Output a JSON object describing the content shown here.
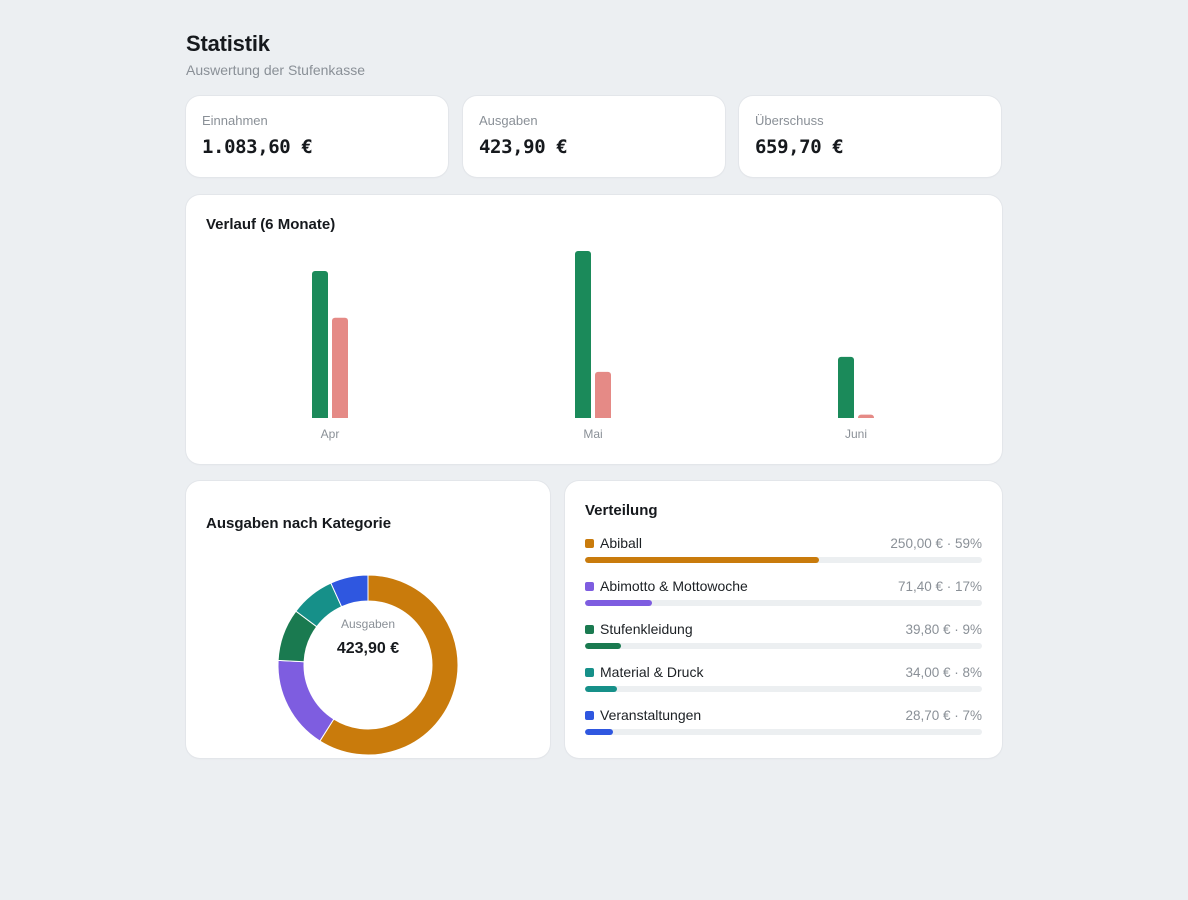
{
  "header": {
    "title": "Statistik",
    "subtitle": "Auswertung der Stufenkasse"
  },
  "kpis": [
    {
      "label": "Einnahmen",
      "value": "1.083,60 €"
    },
    {
      "label": "Ausgaben",
      "value": "423,90 €"
    },
    {
      "label": "Überschuss",
      "value": "659,70 €"
    }
  ],
  "trend": {
    "title": "Verlauf (6 Monate)",
    "chart_data": {
      "type": "bar",
      "categories": [
        "Apr",
        "Mai",
        "Juni"
      ],
      "series": [
        {
          "values": [
            440,
            500,
            183
          ],
          "color": "#1b8a5a"
        },
        {
          "values": [
            300,
            138,
            10
          ],
          "color": "#e58a86"
        }
      ],
      "ylim": [
        0,
        500
      ],
      "grid": false,
      "legend": "none"
    }
  },
  "category": {
    "title": "Ausgaben nach Kategorie",
    "center_label": "Ausgaben",
    "center_value": "423,90 €",
    "chart_data": {
      "type": "pie",
      "style": "donut",
      "labels": [
        "Abiball",
        "Abimotto & Mottowoche",
        "Stufenkleidung",
        "Material & Druck",
        "Veranstaltungen"
      ],
      "values": [
        250.0,
        71.4,
        39.8,
        34.0,
        28.7
      ],
      "colors": [
        "#c97b0c",
        "#7e5de0",
        "#1a7a50",
        "#169089",
        "#2f57e0"
      ]
    }
  },
  "distribution": {
    "title": "Verteilung",
    "items": [
      {
        "name": "Abiball",
        "value": "250,00 € · 59%",
        "percent": 59,
        "color": "#c97b0c"
      },
      {
        "name": "Abimotto & Mottowoche",
        "value": "71,40 € · 17%",
        "percent": 17,
        "color": "#7e5de0"
      },
      {
        "name": "Stufenkleidung",
        "value": "39,80 € · 9%",
        "percent": 9,
        "color": "#1a7a50"
      },
      {
        "name": "Material & Druck",
        "value": "34,00 € · 8%",
        "percent": 8,
        "color": "#169089"
      },
      {
        "name": "Veranstaltungen",
        "value": "28,70 € · 7%",
        "percent": 7,
        "color": "#2f57e0"
      }
    ]
  }
}
